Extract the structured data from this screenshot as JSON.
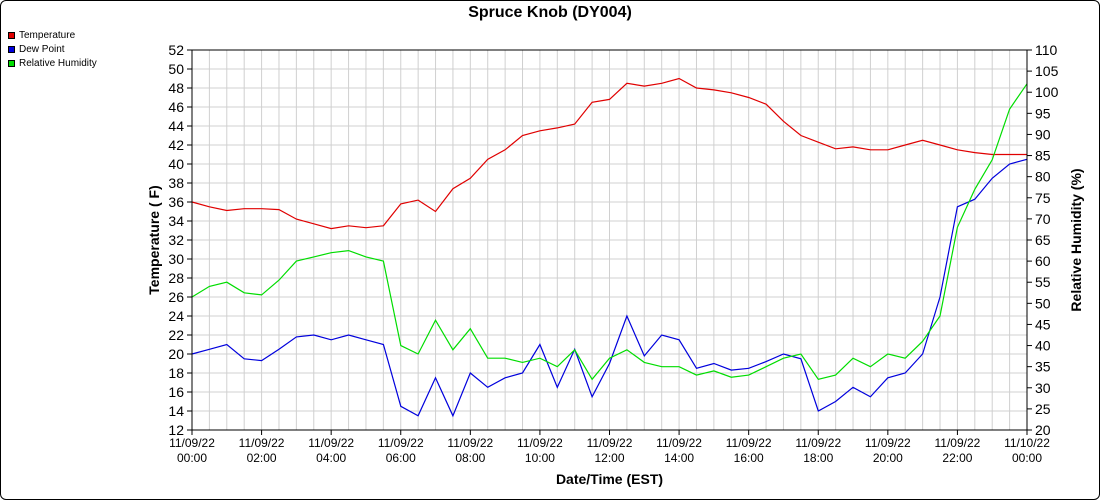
{
  "chart_data": {
    "type": "line",
    "title": "Spruce Knob (DY004)",
    "xlabel": "Date/Time (EST)",
    "ylabel_left": "Temperature ( F)",
    "ylabel_right": "Relative Humidity (%)",
    "ylim_left": [
      12,
      52
    ],
    "ylim_right": [
      20,
      110
    ],
    "yticks_left": [
      12,
      14,
      16,
      18,
      20,
      22,
      24,
      26,
      28,
      30,
      32,
      34,
      36,
      38,
      40,
      42,
      44,
      46,
      48,
      50,
      52
    ],
    "yticks_right": [
      20,
      25,
      30,
      35,
      40,
      45,
      50,
      55,
      60,
      65,
      70,
      75,
      80,
      85,
      90,
      95,
      100,
      105,
      110
    ],
    "x_unit": "hours since 11/09/22 00:00",
    "xlim": [
      0,
      24
    ],
    "xticks": [
      {
        "date": "11/09/22",
        "time": "00:00"
      },
      {
        "date": "11/09/22",
        "time": "02:00"
      },
      {
        "date": "11/09/22",
        "time": "04:00"
      },
      {
        "date": "11/09/22",
        "time": "06:00"
      },
      {
        "date": "11/09/22",
        "time": "08:00"
      },
      {
        "date": "11/09/22",
        "time": "10:00"
      },
      {
        "date": "11/09/22",
        "time": "12:00"
      },
      {
        "date": "11/09/22",
        "time": "14:00"
      },
      {
        "date": "11/09/22",
        "time": "16:00"
      },
      {
        "date": "11/09/22",
        "time": "18:00"
      },
      {
        "date": "11/09/22",
        "time": "20:00"
      },
      {
        "date": "11/09/22",
        "time": "22:00"
      },
      {
        "date": "11/10/22",
        "time": "00:00"
      }
    ],
    "grid": true,
    "legend_position": "top-left",
    "series": [
      {
        "name": "Temperature",
        "axis": "left",
        "color": "#e00000",
        "points": [
          [
            0,
            36
          ],
          [
            0.5,
            35.5
          ],
          [
            1,
            35.1
          ],
          [
            1.5,
            35.3
          ],
          [
            2,
            35.3
          ],
          [
            2.5,
            35.2
          ],
          [
            3,
            34.2
          ],
          [
            3.5,
            33.7
          ],
          [
            4,
            33.2
          ],
          [
            4.5,
            33.5
          ],
          [
            5,
            33.3
          ],
          [
            5.5,
            33.5
          ],
          [
            6,
            35.8
          ],
          [
            6.5,
            36.2
          ],
          [
            7,
            35
          ],
          [
            7.5,
            37.4
          ],
          [
            8,
            38.5
          ],
          [
            8.5,
            40.5
          ],
          [
            9,
            41.5
          ],
          [
            9.5,
            43
          ],
          [
            10,
            43.5
          ],
          [
            10.5,
            43.8
          ],
          [
            11,
            44.2
          ],
          [
            11.5,
            46.5
          ],
          [
            12,
            46.8
          ],
          [
            12.5,
            48.5
          ],
          [
            13,
            48.2
          ],
          [
            13.5,
            48.5
          ],
          [
            14,
            49
          ],
          [
            14.5,
            48
          ],
          [
            15,
            47.8
          ],
          [
            15.5,
            47.5
          ],
          [
            16,
            47
          ],
          [
            16.5,
            46.3
          ],
          [
            17,
            44.5
          ],
          [
            17.5,
            43
          ],
          [
            18,
            42.3
          ],
          [
            18.5,
            41.6
          ],
          [
            19,
            41.8
          ],
          [
            19.5,
            41.5
          ],
          [
            20,
            41.5
          ],
          [
            20.5,
            42
          ],
          [
            21,
            42.5
          ],
          [
            21.5,
            42
          ],
          [
            22,
            41.5
          ],
          [
            22.5,
            41.2
          ],
          [
            23,
            41
          ],
          [
            23.5,
            41
          ],
          [
            24,
            41
          ]
        ]
      },
      {
        "name": "Dew Point",
        "axis": "left",
        "color": "#0000dd",
        "points": [
          [
            0,
            20
          ],
          [
            0.5,
            20.5
          ],
          [
            1,
            21
          ],
          [
            1.5,
            19.5
          ],
          [
            2,
            19.3
          ],
          [
            2.5,
            20.5
          ],
          [
            3,
            21.8
          ],
          [
            3.5,
            22
          ],
          [
            4,
            21.5
          ],
          [
            4.5,
            22
          ],
          [
            5,
            21.5
          ],
          [
            5.5,
            21
          ],
          [
            6,
            14.5
          ],
          [
            6.5,
            13.5
          ],
          [
            7,
            17.5
          ],
          [
            7.5,
            13.5
          ],
          [
            8,
            18
          ],
          [
            8.5,
            16.5
          ],
          [
            9,
            17.5
          ],
          [
            9.5,
            18
          ],
          [
            10,
            21
          ],
          [
            10.5,
            16.5
          ],
          [
            11,
            20.5
          ],
          [
            11.5,
            15.5
          ],
          [
            12,
            19
          ],
          [
            12.5,
            24
          ],
          [
            13,
            19.8
          ],
          [
            13.5,
            22
          ],
          [
            14,
            21.5
          ],
          [
            14.5,
            18.5
          ],
          [
            15,
            19
          ],
          [
            15.5,
            18.3
          ],
          [
            16,
            18.5
          ],
          [
            16.5,
            19.2
          ],
          [
            17,
            20
          ],
          [
            17.5,
            19.5
          ],
          [
            18,
            14
          ],
          [
            18.5,
            15
          ],
          [
            19,
            16.5
          ],
          [
            19.5,
            15.5
          ],
          [
            20,
            17.5
          ],
          [
            20.5,
            18
          ],
          [
            21,
            20
          ],
          [
            21.5,
            26
          ],
          [
            22,
            35.5
          ],
          [
            22.5,
            36.3
          ],
          [
            23,
            38.5
          ],
          [
            23.5,
            40
          ],
          [
            24,
            40.5
          ]
        ]
      },
      {
        "name": "Relative Humidity",
        "axis": "right",
        "color": "#00dd00",
        "points": [
          [
            0,
            51.5
          ],
          [
            0.5,
            54
          ],
          [
            1,
            55
          ],
          [
            1.5,
            52.5
          ],
          [
            2,
            52
          ],
          [
            2.5,
            55.5
          ],
          [
            3,
            60
          ],
          [
            3.5,
            61
          ],
          [
            4,
            62
          ],
          [
            4.5,
            62.5
          ],
          [
            5,
            61
          ],
          [
            5.5,
            60
          ],
          [
            6,
            40
          ],
          [
            6.5,
            38
          ],
          [
            7,
            46
          ],
          [
            7.5,
            39
          ],
          [
            8,
            44
          ],
          [
            8.5,
            37
          ],
          [
            9,
            37
          ],
          [
            9.5,
            36
          ],
          [
            10,
            37
          ],
          [
            10.5,
            35
          ],
          [
            11,
            39
          ],
          [
            11.5,
            32
          ],
          [
            12,
            37
          ],
          [
            12.5,
            39
          ],
          [
            13,
            36
          ],
          [
            13.5,
            35
          ],
          [
            14,
            35
          ],
          [
            14.5,
            33
          ],
          [
            15,
            34
          ],
          [
            15.5,
            32.5
          ],
          [
            16,
            33
          ],
          [
            16.5,
            35
          ],
          [
            17,
            37
          ],
          [
            17.5,
            38
          ],
          [
            18,
            32
          ],
          [
            18.5,
            33
          ],
          [
            19,
            37
          ],
          [
            19.5,
            35
          ],
          [
            20,
            38
          ],
          [
            20.5,
            37
          ],
          [
            21,
            41
          ],
          [
            21.5,
            47
          ],
          [
            22,
            68
          ],
          [
            22.5,
            77
          ],
          [
            23,
            84
          ],
          [
            23.5,
            96
          ],
          [
            24,
            102
          ]
        ]
      }
    ]
  }
}
